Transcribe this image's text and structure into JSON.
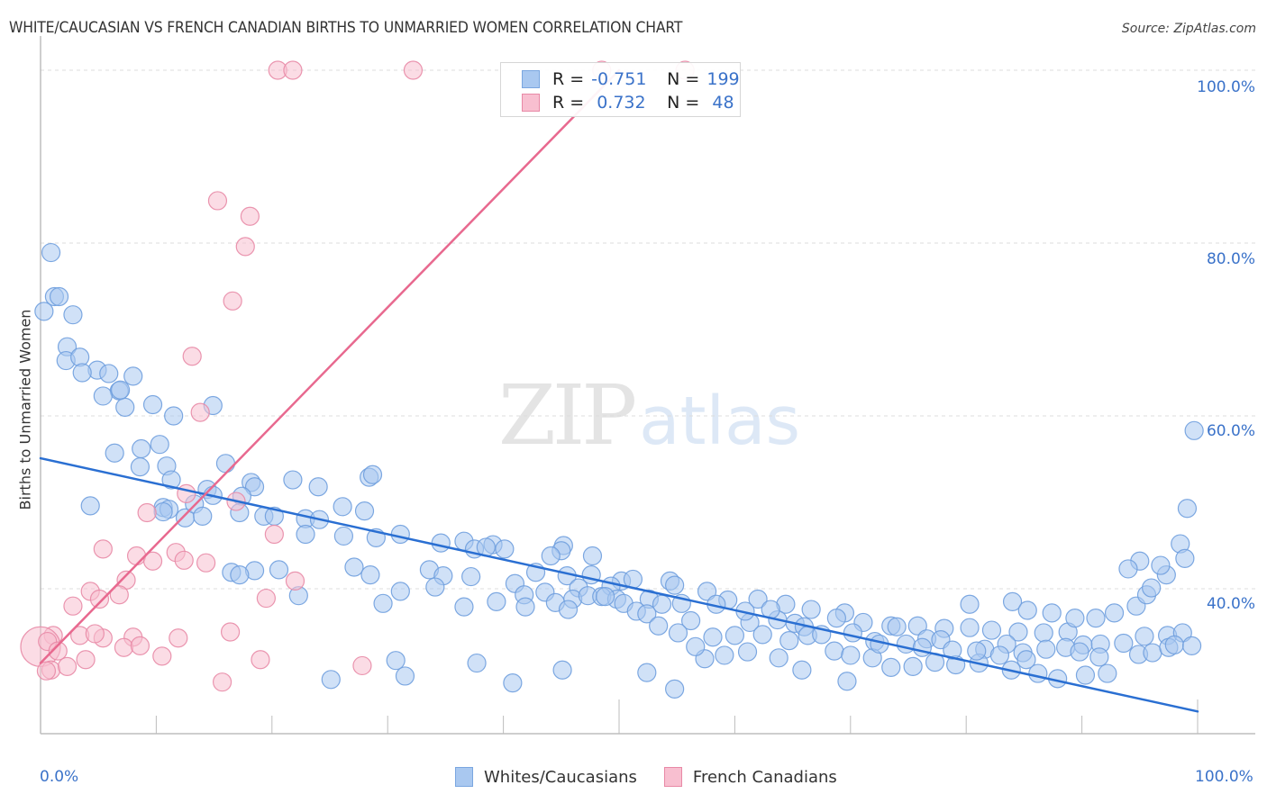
{
  "header": {
    "title": "WHITE/CAUCASIAN VS FRENCH CANADIAN BIRTHS TO UNMARRIED WOMEN CORRELATION CHART",
    "source": "Source: ZipAtlas.com"
  },
  "watermark": {
    "zip": "ZIP",
    "atlas": "atlas"
  },
  "stats_legend": [
    {
      "r_label": "R =",
      "r_value": "-0.751",
      "n_label": "N =",
      "n_value": "199",
      "color": "#a9c8f0",
      "border": "#7aa6e0"
    },
    {
      "r_label": "R =",
      "r_value": " 0.732",
      "n_label": "N =",
      "n_value": " 48",
      "color": "#f8bfd0",
      "border": "#e889a6"
    }
  ],
  "chart_data": {
    "type": "scatter",
    "title": "WHITE/CAUCASIAN VS FRENCH CANADIAN BIRTHS TO UNMARRIED WOMEN CORRELATION CHART",
    "xlabel": "",
    "ylabel": "Births to Unmarried Women",
    "xlim": [
      0,
      100
    ],
    "ylim": [
      20.6,
      100
    ],
    "x_tick_labels": [
      "0.0%",
      "100.0%"
    ],
    "y_ticks": [
      40,
      60,
      80,
      100
    ],
    "y_tick_labels": [
      "40.0%",
      "60.0%",
      "80.0%",
      "100.0%"
    ],
    "grid": "horizontal-dashed",
    "legend": "bottom-center",
    "series": [
      {
        "name": "Whites/Caucasians",
        "color": "#a9c8f0",
        "stroke": "#6f9fde",
        "R": -0.751,
        "N": 199,
        "trend": {
          "x": [
            0,
            100
          ],
          "y": [
            55.1,
            25.8
          ],
          "color": "#2a6fd2"
        },
        "points": [
          [
            0.9,
            78.9
          ],
          [
            1.2,
            73.8
          ],
          [
            1.6,
            73.8
          ],
          [
            0.3,
            72.1
          ],
          [
            2.8,
            71.7
          ],
          [
            2.3,
            68.0
          ],
          [
            2.2,
            66.4
          ],
          [
            3.4,
            66.8
          ],
          [
            4.9,
            65.3
          ],
          [
            3.6,
            65.0
          ],
          [
            5.9,
            64.9
          ],
          [
            8.0,
            64.6
          ],
          [
            6.8,
            62.9
          ],
          [
            6.9,
            63.0
          ],
          [
            5.4,
            62.3
          ],
          [
            9.7,
            61.3
          ],
          [
            7.3,
            61.0
          ],
          [
            14.9,
            61.2
          ],
          [
            11.5,
            60.0
          ],
          [
            10.3,
            56.7
          ],
          [
            8.6,
            54.1
          ],
          [
            10.9,
            54.2
          ],
          [
            6.4,
            55.7
          ],
          [
            8.7,
            56.2
          ],
          [
            16.0,
            54.5
          ],
          [
            11.3,
            52.6
          ],
          [
            14.4,
            51.5
          ],
          [
            21.8,
            52.6
          ],
          [
            24.0,
            51.8
          ],
          [
            18.2,
            52.3
          ],
          [
            28.4,
            52.9
          ],
          [
            28.7,
            53.2
          ],
          [
            18.5,
            51.8
          ],
          [
            14.9,
            50.8
          ],
          [
            17.4,
            50.7
          ],
          [
            10.6,
            49.4
          ],
          [
            11.1,
            49.2
          ],
          [
            4.3,
            49.6
          ],
          [
            10.6,
            48.9
          ],
          [
            12.5,
            48.2
          ],
          [
            13.3,
            49.8
          ],
          [
            14.0,
            48.4
          ],
          [
            17.2,
            48.8
          ],
          [
            19.3,
            48.4
          ],
          [
            20.2,
            48.4
          ],
          [
            22.9,
            48.1
          ],
          [
            24.1,
            48.0
          ],
          [
            26.1,
            49.5
          ],
          [
            28.0,
            49.0
          ],
          [
            22.9,
            46.3
          ],
          [
            26.2,
            46.1
          ],
          [
            29.0,
            45.9
          ],
          [
            31.1,
            46.3
          ],
          [
            34.6,
            45.3
          ],
          [
            36.6,
            45.5
          ],
          [
            39.1,
            45.1
          ],
          [
            37.5,
            44.6
          ],
          [
            38.5,
            44.8
          ],
          [
            40.1,
            44.6
          ],
          [
            45.2,
            45.0
          ],
          [
            45.0,
            44.4
          ],
          [
            44.1,
            43.8
          ],
          [
            47.7,
            43.8
          ],
          [
            18.5,
            42.1
          ],
          [
            16.5,
            41.9
          ],
          [
            20.6,
            42.2
          ],
          [
            17.2,
            41.6
          ],
          [
            27.1,
            42.5
          ],
          [
            28.5,
            41.6
          ],
          [
            33.6,
            42.2
          ],
          [
            34.8,
            41.5
          ],
          [
            37.2,
            41.4
          ],
          [
            41.0,
            40.6
          ],
          [
            42.8,
            41.9
          ],
          [
            45.5,
            41.5
          ],
          [
            47.6,
            41.6
          ],
          [
            50.2,
            40.9
          ],
          [
            51.2,
            41.1
          ],
          [
            54.4,
            40.9
          ],
          [
            46.5,
            40.1
          ],
          [
            49.3,
            40.3
          ],
          [
            54.8,
            40.4
          ],
          [
            41.8,
            39.3
          ],
          [
            43.6,
            39.6
          ],
          [
            46.0,
            38.8
          ],
          [
            47.3,
            39.2
          ],
          [
            48.5,
            39.1
          ],
          [
            49.8,
            38.8
          ],
          [
            52.6,
            38.8
          ],
          [
            53.7,
            38.2
          ],
          [
            55.4,
            38.3
          ],
          [
            36.6,
            37.9
          ],
          [
            22.3,
            39.2
          ],
          [
            31.1,
            39.7
          ],
          [
            34.1,
            40.2
          ],
          [
            39.4,
            38.5
          ],
          [
            41.9,
            37.9
          ],
          [
            44.5,
            38.4
          ],
          [
            45.6,
            37.6
          ],
          [
            50.4,
            38.3
          ],
          [
            51.5,
            37.4
          ],
          [
            57.6,
            39.7
          ],
          [
            59.4,
            38.7
          ],
          [
            62.0,
            38.8
          ],
          [
            64.4,
            38.2
          ],
          [
            66.6,
            37.6
          ],
          [
            69.5,
            37.2
          ],
          [
            56.2,
            36.3
          ],
          [
            63.7,
            36.4
          ],
          [
            61.3,
            36.1
          ],
          [
            65.2,
            36.0
          ],
          [
            68.8,
            36.6
          ],
          [
            71.1,
            36.1
          ],
          [
            73.5,
            35.7
          ],
          [
            74.0,
            35.6
          ],
          [
            75.8,
            35.7
          ],
          [
            78.1,
            35.4
          ],
          [
            80.3,
            35.5
          ],
          [
            82.2,
            35.2
          ],
          [
            84.5,
            35.0
          ],
          [
            86.7,
            34.9
          ],
          [
            88.8,
            35.0
          ],
          [
            90.1,
            33.5
          ],
          [
            91.6,
            33.6
          ],
          [
            93.6,
            33.7
          ],
          [
            95.4,
            34.5
          ],
          [
            97.4,
            34.6
          ],
          [
            98.7,
            34.9
          ],
          [
            29.6,
            38.3
          ],
          [
            48.8,
            39.1
          ],
          [
            52.4,
            37.1
          ],
          [
            58.4,
            38.2
          ],
          [
            60.9,
            37.4
          ],
          [
            63.1,
            37.6
          ],
          [
            66.0,
            35.6
          ],
          [
            66.3,
            34.6
          ],
          [
            70.2,
            34.9
          ],
          [
            72.1,
            33.9
          ],
          [
            76.6,
            34.2
          ],
          [
            77.8,
            34.1
          ],
          [
            81.6,
            33.0
          ],
          [
            83.5,
            33.6
          ],
          [
            84.9,
            32.6
          ],
          [
            86.9,
            33.0
          ],
          [
            88.6,
            33.2
          ],
          [
            89.8,
            32.7
          ],
          [
            91.5,
            32.1
          ],
          [
            94.9,
            32.4
          ],
          [
            96.1,
            32.6
          ],
          [
            97.5,
            33.2
          ],
          [
            98.0,
            33.5
          ],
          [
            99.5,
            33.4
          ],
          [
            80.3,
            38.2
          ],
          [
            84.0,
            38.5
          ],
          [
            85.3,
            37.5
          ],
          [
            87.4,
            37.2
          ],
          [
            89.4,
            36.6
          ],
          [
            91.2,
            36.6
          ],
          [
            92.8,
            37.2
          ],
          [
            94.7,
            38.0
          ],
          [
            95.6,
            39.3
          ],
          [
            96.0,
            40.1
          ],
          [
            97.3,
            41.6
          ],
          [
            98.5,
            45.2
          ],
          [
            99.1,
            49.3
          ],
          [
            96.8,
            42.7
          ],
          [
            95.0,
            43.2
          ],
          [
            99.7,
            58.3
          ],
          [
            98.9,
            43.5
          ],
          [
            94.0,
            42.3
          ],
          [
            71.9,
            32.0
          ],
          [
            73.5,
            30.9
          ],
          [
            75.4,
            31.0
          ],
          [
            77.3,
            31.5
          ],
          [
            79.1,
            31.2
          ],
          [
            81.1,
            31.4
          ],
          [
            83.9,
            30.6
          ],
          [
            86.2,
            30.2
          ],
          [
            87.9,
            29.6
          ],
          [
            90.3,
            30.0
          ],
          [
            92.2,
            30.2
          ],
          [
            68.6,
            32.8
          ],
          [
            70.0,
            32.3
          ],
          [
            63.8,
            32.0
          ],
          [
            65.8,
            30.6
          ],
          [
            59.1,
            32.3
          ],
          [
            61.1,
            32.7
          ],
          [
            57.4,
            31.9
          ],
          [
            53.4,
            35.7
          ],
          [
            55.1,
            34.9
          ],
          [
            56.6,
            33.3
          ],
          [
            58.1,
            34.4
          ],
          [
            60.0,
            34.6
          ],
          [
            62.4,
            34.7
          ],
          [
            64.7,
            34.0
          ],
          [
            67.5,
            34.7
          ],
          [
            72.5,
            33.6
          ],
          [
            74.8,
            33.6
          ],
          [
            76.2,
            33.2
          ],
          [
            78.8,
            32.9
          ],
          [
            80.9,
            32.8
          ],
          [
            82.9,
            32.3
          ],
          [
            85.2,
            31.8
          ],
          [
            31.5,
            29.9
          ],
          [
            25.1,
            29.5
          ],
          [
            40.8,
            29.1
          ],
          [
            30.7,
            31.7
          ],
          [
            37.7,
            31.4
          ],
          [
            45.1,
            30.6
          ],
          [
            52.4,
            30.3
          ],
          [
            54.8,
            28.4
          ],
          [
            69.7,
            29.3
          ]
        ]
      },
      {
        "name": "French Canadians",
        "color": "#f8bfd0",
        "stroke": "#e889a6",
        "R": 0.732,
        "N": 48,
        "trend": {
          "x": [
            0,
            50
          ],
          "y": [
            31.4,
            100
          ],
          "color": "#e8698f"
        },
        "points": [
          [
            20.5,
            100
          ],
          [
            21.8,
            100
          ],
          [
            32.2,
            100
          ],
          [
            48.5,
            100
          ],
          [
            55.7,
            100
          ],
          [
            15.3,
            84.9
          ],
          [
            18.1,
            83.1
          ],
          [
            17.7,
            79.6
          ],
          [
            16.6,
            73.3
          ],
          [
            13.1,
            66.9
          ],
          [
            13.8,
            60.4
          ],
          [
            12.6,
            51.0
          ],
          [
            16.9,
            50.1
          ],
          [
            9.2,
            48.8
          ],
          [
            20.2,
            46.3
          ],
          [
            5.4,
            44.6
          ],
          [
            11.7,
            44.2
          ],
          [
            8.3,
            43.8
          ],
          [
            9.7,
            43.2
          ],
          [
            12.4,
            43.3
          ],
          [
            14.3,
            43.0
          ],
          [
            7.4,
            41.0
          ],
          [
            22.0,
            40.9
          ],
          [
            4.3,
            39.7
          ],
          [
            6.8,
            39.3
          ],
          [
            5.1,
            38.8
          ],
          [
            19.5,
            38.9
          ],
          [
            2.8,
            38.0
          ],
          [
            1.1,
            34.6
          ],
          [
            3.4,
            34.6
          ],
          [
            5.4,
            34.3
          ],
          [
            8.0,
            34.4
          ],
          [
            11.9,
            34.3
          ],
          [
            16.4,
            35.0
          ],
          [
            4.7,
            34.8
          ],
          [
            0.0,
            33.3
          ],
          [
            0.6,
            33.9
          ],
          [
            1.5,
            32.8
          ],
          [
            7.2,
            33.2
          ],
          [
            8.6,
            33.4
          ],
          [
            10.5,
            32.2
          ],
          [
            19.0,
            31.8
          ],
          [
            27.8,
            31.1
          ],
          [
            0.9,
            30.6
          ],
          [
            0.5,
            30.5
          ],
          [
            2.3,
            31.0
          ],
          [
            3.9,
            31.8
          ],
          [
            15.7,
            29.2
          ]
        ]
      }
    ]
  },
  "bottom_legend": [
    {
      "label": "Whites/Caucasians",
      "color": "#a9c8f0",
      "border": "#7aa6e0"
    },
    {
      "label": "French Canadians",
      "color": "#f8bfd0",
      "border": "#e889a6"
    }
  ]
}
